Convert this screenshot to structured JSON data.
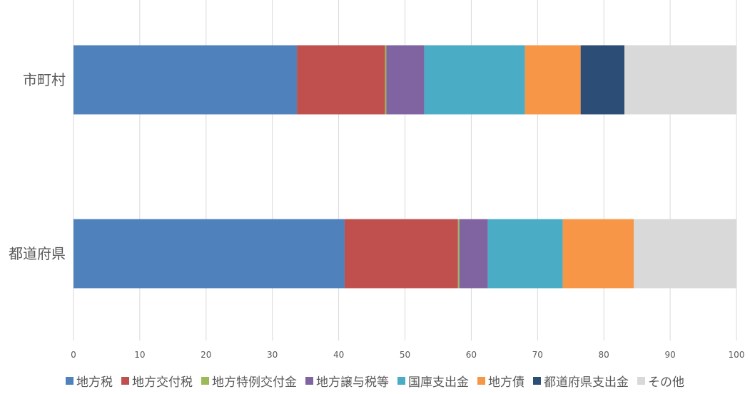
{
  "chart_data": {
    "type": "bar",
    "orientation": "horizontal",
    "stacked": true,
    "categories": [
      "市町村",
      "都道府県"
    ],
    "series": [
      {
        "name": "地方税",
        "color": "#4F81BD",
        "values": [
          33.7,
          40.9
        ]
      },
      {
        "name": "地方交付税",
        "color": "#C0504D",
        "values": [
          13.3,
          17.1
        ]
      },
      {
        "name": "地方特例交付金",
        "color": "#9BBB59",
        "values": [
          0.2,
          0.2
        ]
      },
      {
        "name": "地方譲与税等",
        "color": "#8064A2",
        "values": [
          5.7,
          4.3
        ]
      },
      {
        "name": "国庫支出金",
        "color": "#4BACC6",
        "values": [
          15.2,
          11.3
        ]
      },
      {
        "name": "地方債",
        "color": "#F79646",
        "values": [
          8.4,
          10.7
        ]
      },
      {
        "name": "都道府県支出金",
        "color": "#2C4D75",
        "values": [
          6.6,
          0
        ]
      },
      {
        "name": "その他",
        "color": "#D9D9D9",
        "values": [
          16.9,
          15.5
        ]
      }
    ],
    "xlim": [
      0,
      100
    ],
    "xticks": [
      0,
      10,
      20,
      30,
      40,
      50,
      60,
      70,
      80,
      90,
      100
    ],
    "title": "",
    "xlabel": "",
    "ylabel": "",
    "grid": "vertical",
    "legend": "bottom"
  }
}
